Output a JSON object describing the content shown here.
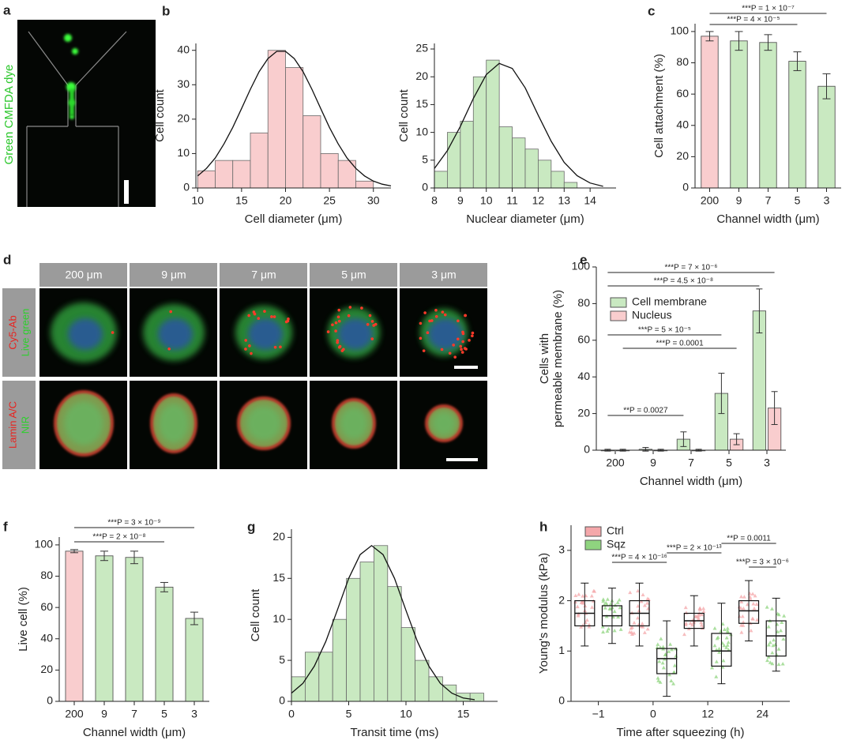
{
  "figure": {
    "a": {
      "panel": "a",
      "label": "Green CMFDA dye"
    },
    "d": {
      "panel": "d",
      "columns": [
        "200 μm",
        "9 μm",
        "7 μm",
        "5 μm",
        "3 μm"
      ],
      "rows": [
        [
          "Cy5-Ab",
          "Live green"
        ],
        [
          "Lamin A/C",
          "NIR"
        ]
      ]
    }
  },
  "chart_data": [
    {
      "type": "histogram",
      "panel": "b",
      "xlabel": "Cell diameter (μm)",
      "ylabel": "Cell count",
      "bins": [
        10,
        12,
        14,
        16,
        18,
        20,
        22,
        24,
        26,
        28,
        30
      ],
      "values": [
        5,
        8,
        8,
        16,
        40,
        35,
        21,
        10,
        8,
        2
      ],
      "color": "#f9cdce",
      "xlim": [
        9.8,
        32
      ],
      "xticks": [
        10,
        15,
        20,
        25,
        30
      ],
      "ylim": [
        0,
        42
      ],
      "yticks": [
        0,
        10,
        20,
        30,
        40
      ],
      "fit": {
        "x": [
          10,
          11,
          12,
          13,
          14,
          15,
          16,
          17,
          18,
          19,
          20,
          21,
          22,
          23,
          24,
          25,
          26,
          27,
          28,
          29,
          30,
          31,
          32
        ],
        "values": [
          3.5,
          5.7,
          8.7,
          12.8,
          17.6,
          23.1,
          28.7,
          33.8,
          37.6,
          39.7,
          39.7,
          37.6,
          33.8,
          28.7,
          23.1,
          17.6,
          12.8,
          8.7,
          5.7,
          3.5,
          2.0,
          1.1,
          0.6
        ]
      }
    },
    {
      "type": "histogram",
      "xlabel": "Nuclear diameter (μm)",
      "ylabel": "Cell count",
      "bins": [
        8,
        8.5,
        9,
        9.5,
        10,
        10.5,
        11,
        11.5,
        12,
        12.5,
        13,
        13.5
      ],
      "values": [
        3,
        10,
        12,
        20,
        23,
        11,
        9,
        7,
        5,
        3,
        1
      ],
      "color": "#c9e9c1",
      "xlim": [
        8,
        15
      ],
      "xticks": [
        8,
        9,
        10,
        11,
        12,
        13,
        14
      ],
      "ylim": [
        0,
        26
      ],
      "yticks": [
        0,
        5,
        10,
        15,
        20,
        25
      ],
      "fit": {
        "x": [
          8,
          8.5,
          9,
          9.5,
          10,
          10.5,
          11,
          11.5,
          12,
          12.5,
          13,
          13.5,
          14,
          14.5
        ],
        "values": [
          3.5,
          6.7,
          11.1,
          16.1,
          20.4,
          22.4,
          21.5,
          18.0,
          13.1,
          8.4,
          4.6,
          2.2,
          0.9,
          0.3
        ]
      }
    },
    {
      "type": "bar",
      "panel": "c",
      "xlabel": "Channel width (μm)",
      "ylabel": "Cell attachment (%)",
      "categories": [
        "200",
        "9",
        "7",
        "5",
        "3"
      ],
      "values": [
        97,
        94,
        93,
        81,
        65
      ],
      "errors": [
        3,
        6,
        5,
        6,
        8
      ],
      "colors": [
        "#f9cdce",
        "#c9e9c1",
        "#c9e9c1",
        "#c9e9c1",
        "#c9e9c1"
      ],
      "ylim": [
        0,
        105
      ],
      "yticks": [
        0,
        20,
        40,
        60,
        80,
        100
      ],
      "annotations": [
        "***P = 1 × 10⁻⁷",
        "***P = 4 × 10⁻⁵"
      ]
    },
    {
      "type": "grouped_bar",
      "panel": "e",
      "xlabel": "Channel width (μm)",
      "ylabel": [
        "Cells with",
        "permeable membrane (%)"
      ],
      "categories": [
        "200",
        "9",
        "7",
        "5",
        "3"
      ],
      "series": [
        {
          "name": "Cell membrane",
          "color": "#c9e9c1",
          "values": [
            0,
            0.5,
            6,
            31,
            76
          ],
          "errors": [
            0.5,
            1,
            4,
            11,
            12
          ]
        },
        {
          "name": "Nucleus",
          "color": "#f9cdce",
          "values": [
            0,
            0,
            0,
            6,
            23
          ],
          "errors": [
            0.5,
            0.5,
            0.5,
            3,
            9
          ]
        }
      ],
      "legend": "upper left",
      "ylim": [
        0,
        100
      ],
      "yticks": [
        0,
        20,
        40,
        60,
        80,
        100
      ],
      "annotations": [
        "***P = 7 × 10⁻⁶",
        "***P = 4.5 × 10⁻⁸",
        "***P = 5 × 10⁻⁵",
        "***P = 0.0001",
        "**P = 0.0027"
      ]
    },
    {
      "type": "bar",
      "panel": "f",
      "xlabel": "Channel width (μm)",
      "ylabel": "Live cell (%)",
      "categories": [
        "200",
        "9",
        "7",
        "5",
        "3"
      ],
      "values": [
        96,
        93,
        92,
        73,
        53
      ],
      "errors": [
        1,
        3,
        4,
        3,
        4
      ],
      "colors": [
        "#f9cdce",
        "#c9e9c1",
        "#c9e9c1",
        "#c9e9c1",
        "#c9e9c1"
      ],
      "ylim": [
        0,
        105
      ],
      "yticks": [
        0,
        20,
        40,
        60,
        80,
        100
      ],
      "annotations": [
        "***P = 3 × 10⁻⁹",
        "***P = 2 × 10⁻⁸"
      ]
    },
    {
      "type": "histogram",
      "panel": "g",
      "xlabel": "Transit time (ms)",
      "ylabel": "Cell count",
      "bins": [
        0,
        1.2,
        2.4,
        3.6,
        4.8,
        6,
        7.2,
        8.4,
        9.6,
        10.8,
        12,
        13.2,
        14.4,
        15.6,
        16.8
      ],
      "values": [
        3,
        6,
        6,
        10,
        15,
        17,
        19,
        14,
        9,
        5,
        3,
        2,
        1,
        1
      ],
      "color": "#c9e9c1",
      "xlim": [
        0,
        18
      ],
      "xticks": [
        0,
        5,
        10,
        15
      ],
      "ylim": [
        0,
        21
      ],
      "yticks": [
        0,
        5,
        10,
        15,
        20
      ],
      "fit": {
        "x": [
          0,
          1,
          2,
          3,
          4,
          5,
          6,
          7,
          8,
          9,
          10,
          11,
          12,
          13,
          14,
          15,
          16
        ],
        "values": [
          1.0,
          2.2,
          4.3,
          7.3,
          11.1,
          15.0,
          17.9,
          19,
          17.9,
          15.0,
          11.1,
          7.3,
          4.3,
          2.2,
          1.0,
          0.4,
          0.2
        ]
      }
    },
    {
      "type": "box",
      "panel": "h",
      "xlabel": "Time after squeezing (h)",
      "ylabel": "Young's modulus (kPa)",
      "categories": [
        "−1",
        "0",
        "12",
        "24"
      ],
      "series": [
        {
          "name": "Ctrl",
          "color": "#f4a7aa",
          "boxes": [
            {
              "min": 1.1,
              "q1": 1.5,
              "median": 1.75,
              "q3": 2.0,
              "max": 2.35
            },
            {
              "min": 1.1,
              "q1": 1.5,
              "median": 1.75,
              "q3": 2.0,
              "max": 2.35
            },
            {
              "min": 1.1,
              "q1": 1.45,
              "median": 1.6,
              "q3": 1.75,
              "max": 2.1
            },
            {
              "min": 1.2,
              "q1": 1.55,
              "median": 1.8,
              "q3": 2.0,
              "max": 2.4
            }
          ]
        },
        {
          "name": "Sqz",
          "color": "#8fd47f",
          "boxes": [
            {
              "min": 1.15,
              "q1": 1.5,
              "median": 1.7,
              "q3": 1.9,
              "max": 2.25
            },
            {
              "min": 0.1,
              "q1": 0.55,
              "median": 0.85,
              "q3": 1.05,
              "max": 1.6
            },
            {
              "min": 0.35,
              "q1": 0.7,
              "median": 1.0,
              "q3": 1.35,
              "max": 1.95
            },
            {
              "min": 0.6,
              "q1": 0.9,
              "median": 1.3,
              "q3": 1.6,
              "max": 2.05
            }
          ]
        }
      ],
      "legend": "upper left",
      "ylim": [
        0,
        3.5
      ],
      "yticks": [
        0,
        1,
        2,
        3
      ],
      "annotations": [
        "***P = 4 × 10⁻¹⁶",
        "***P = 2 × 10⁻¹³",
        "**P = 0.0011",
        "***P = 3 × 10⁻⁶"
      ]
    }
  ]
}
